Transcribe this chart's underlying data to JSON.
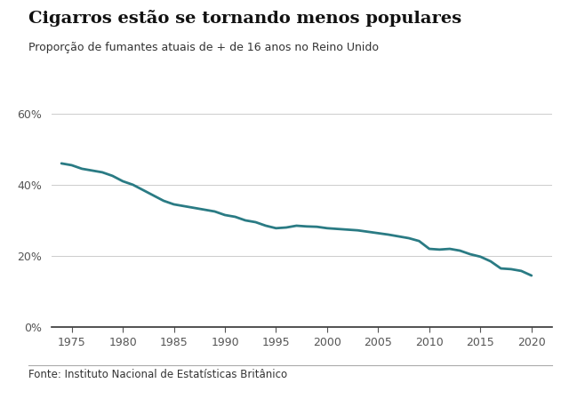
{
  "title": "Cigarros estão se tornando menos populares",
  "subtitle": "Proporção de fumantes atuais de + de 16 anos no Reino Unido",
  "source": "Fonte: Instituto Nacional de Estatísticas Britânico",
  "line_color": "#2a7b84",
  "background_color": "#ffffff",
  "years": [
    1974,
    1975,
    1976,
    1977,
    1978,
    1979,
    1980,
    1981,
    1982,
    1983,
    1984,
    1985,
    1986,
    1987,
    1988,
    1989,
    1990,
    1991,
    1992,
    1993,
    1994,
    1995,
    1996,
    1997,
    1998,
    1999,
    2000,
    2001,
    2002,
    2003,
    2004,
    2005,
    2006,
    2007,
    2008,
    2009,
    2010,
    2011,
    2012,
    2013,
    2014,
    2015,
    2016,
    2017,
    2018,
    2019,
    2020
  ],
  "values": [
    0.46,
    0.455,
    0.445,
    0.44,
    0.435,
    0.425,
    0.41,
    0.4,
    0.385,
    0.37,
    0.355,
    0.345,
    0.34,
    0.335,
    0.33,
    0.325,
    0.315,
    0.31,
    0.3,
    0.295,
    0.285,
    0.278,
    0.28,
    0.285,
    0.283,
    0.282,
    0.278,
    0.276,
    0.274,
    0.272,
    0.268,
    0.264,
    0.26,
    0.255,
    0.25,
    0.242,
    0.22,
    0.218,
    0.22,
    0.215,
    0.205,
    0.198,
    0.185,
    0.165,
    0.163,
    0.158,
    0.145
  ],
  "xlim": [
    1973,
    2022
  ],
  "ylim": [
    0,
    0.65
  ],
  "yticks": [
    0.0,
    0.2,
    0.4,
    0.6
  ],
  "ytick_labels": [
    "0%",
    "20%",
    "40%",
    "60%"
  ],
  "xticks": [
    1975,
    1980,
    1985,
    1990,
    1995,
    2000,
    2005,
    2010,
    2015,
    2020
  ],
  "title_fontsize": 14,
  "subtitle_fontsize": 9,
  "tick_fontsize": 9,
  "source_fontsize": 8.5,
  "line_width": 2.0
}
